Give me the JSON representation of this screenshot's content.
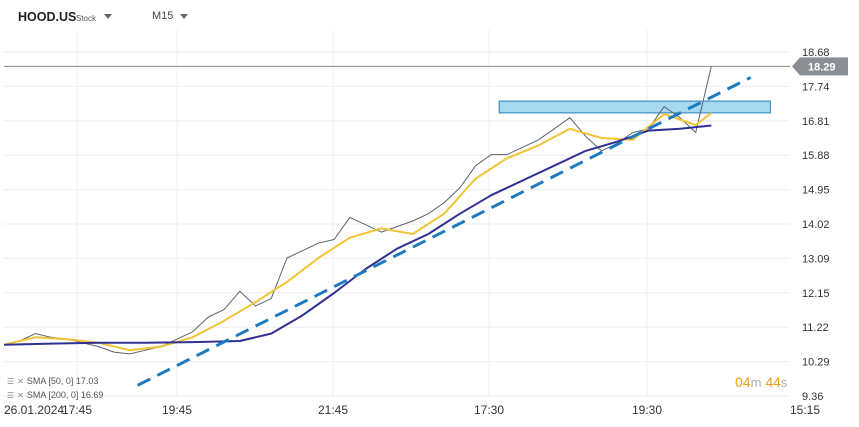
{
  "header": {
    "symbol": "HOOD.US",
    "type_label": "Stock",
    "timeframe": "M15"
  },
  "indicators": [
    {
      "label": "SMA [50, 0] 17.03"
    },
    {
      "label": "SMA [200, 0] 16.69"
    }
  ],
  "timer": {
    "min": "04",
    "min_unit": "m",
    "sec": "44",
    "sec_unit": "s"
  },
  "colors": {
    "price": "#5a6470",
    "sma50": "#f2c335",
    "sma200": "#2e3192",
    "trend": "#1f7bc0",
    "zone": "#a6d8f0",
    "zone_border": "#2a7fb8",
    "last_price_bg": "#8a8f96"
  },
  "chart_data": {
    "type": "line",
    "title": "",
    "y_ticks": [
      "18.68",
      "17.74",
      "16.81",
      "15.88",
      "14.95",
      "14.02",
      "13.09",
      "12.15",
      "11.22",
      "10.29",
      "9.36"
    ],
    "x_ticks": [
      "26.01.2024",
      "17:45",
      "19:45",
      "21:45",
      "17:30",
      "19:30",
      "15:15"
    ],
    "ylim": [
      9.36,
      18.68
    ],
    "last_price": "18.29",
    "x_index_range": [
      0,
      100
    ],
    "series": [
      {
        "x": [
          0,
          2,
          4,
          6,
          8,
          10,
          12,
          14,
          16,
          18,
          20,
          22,
          24,
          26,
          28,
          30,
          32,
          34,
          36,
          38,
          40,
          42,
          44,
          46,
          48,
          50,
          52,
          54,
          56,
          58,
          60,
          62,
          64,
          66,
          68,
          70,
          72,
          74,
          76,
          78,
          80,
          82,
          84,
          86,
          88,
          90
        ],
        "y": [
          10.75,
          10.85,
          11.05,
          10.95,
          10.9,
          10.8,
          10.7,
          10.55,
          10.5,
          10.6,
          10.7,
          10.9,
          11.1,
          11.5,
          11.7,
          12.2,
          11.8,
          12.0,
          13.1,
          13.3,
          13.5,
          13.6,
          14.2,
          14.0,
          13.8,
          13.95,
          14.1,
          14.3,
          14.6,
          15.0,
          15.6,
          15.9,
          15.9,
          16.1,
          16.3,
          16.6,
          16.9,
          16.4,
          16.0,
          16.2,
          16.5,
          16.6,
          17.2,
          16.9,
          16.5,
          18.3
        ]
      },
      {
        "name": "SMA [50, 0]",
        "x": [
          0,
          4,
          8,
          12,
          16,
          20,
          24,
          28,
          32,
          36,
          40,
          44,
          48,
          52,
          56,
          60,
          64,
          68,
          72,
          76,
          80,
          84,
          86,
          88,
          90
        ],
        "y": [
          10.75,
          10.95,
          10.9,
          10.8,
          10.6,
          10.7,
          10.95,
          11.4,
          11.9,
          12.45,
          13.1,
          13.65,
          13.9,
          13.75,
          14.3,
          15.25,
          15.8,
          16.15,
          16.6,
          16.35,
          16.3,
          17.0,
          16.85,
          16.7,
          17.03
        ]
      },
      {
        "name": "SMA [200, 0]",
        "x": [
          0,
          6,
          12,
          18,
          24,
          30,
          34,
          38,
          42,
          46,
          50,
          54,
          58,
          62,
          66,
          70,
          74,
          78,
          82,
          86,
          90
        ],
        "y": [
          10.75,
          10.78,
          10.8,
          10.8,
          10.82,
          10.85,
          11.05,
          11.55,
          12.15,
          12.8,
          13.35,
          13.75,
          14.3,
          14.8,
          15.2,
          15.6,
          16.0,
          16.25,
          16.55,
          16.6,
          16.69
        ]
      }
    ],
    "trendline": {
      "x": [
        17,
        95
      ],
      "y": [
        9.65,
        17.99
      ]
    },
    "zone": {
      "x": [
        63,
        97.5
      ],
      "y": [
        17.03,
        17.35
      ]
    }
  }
}
